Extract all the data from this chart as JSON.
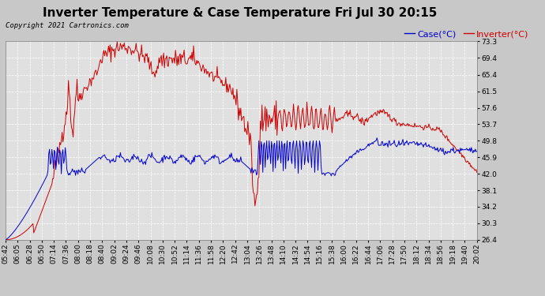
{
  "title": "Inverter Temperature & Case Temperature Fri Jul 30 20:15",
  "copyright": "Copyright 2021 Cartronics.com",
  "legend_case": "Case(°C)",
  "legend_inverter": "Inverter(°C)",
  "yticks": [
    26.4,
    30.3,
    34.2,
    38.1,
    42.0,
    45.9,
    49.8,
    53.7,
    57.6,
    61.5,
    65.4,
    69.4,
    73.3
  ],
  "ylim": [
    26.4,
    73.3
  ],
  "xtick_labels": [
    "05:42",
    "06:05",
    "06:28",
    "06:50",
    "07:14",
    "07:36",
    "08:00",
    "08:18",
    "08:40",
    "09:02",
    "09:24",
    "09:46",
    "10:08",
    "10:30",
    "10:52",
    "11:14",
    "11:36",
    "11:58",
    "12:20",
    "12:42",
    "13:04",
    "13:26",
    "13:48",
    "14:10",
    "14:32",
    "14:54",
    "15:16",
    "15:38",
    "16:00",
    "16:22",
    "16:44",
    "17:06",
    "17:28",
    "17:50",
    "18:12",
    "18:34",
    "18:56",
    "19:18",
    "19:40",
    "20:02"
  ],
  "bg_color": "#c8c8c8",
  "plot_bg_color": "#e0e0e0",
  "grid_color": "#ffffff",
  "inverter_color": "#cc0000",
  "case_color": "#0000cc",
  "title_fontsize": 11,
  "tick_fontsize": 6.5,
  "legend_fontsize": 8,
  "copyright_fontsize": 6.5
}
